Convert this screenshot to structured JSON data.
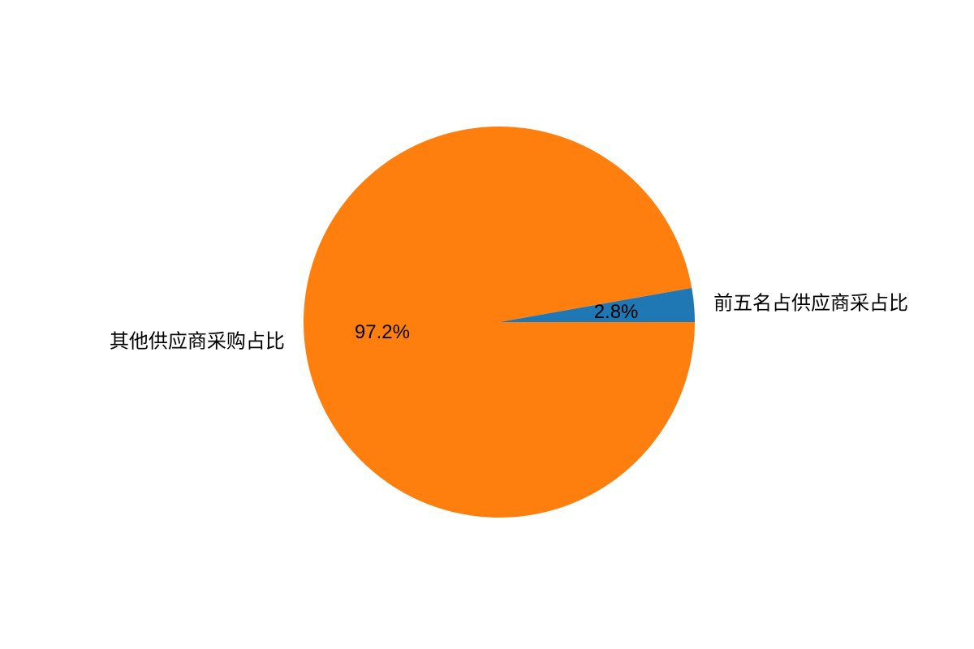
{
  "chart_data": {
    "type": "pie",
    "title": "",
    "start_angle_deg": 0,
    "direction": "counterclockwise",
    "slices": [
      {
        "label": "前五名占供应商采占比",
        "value": 2.8,
        "pct_label": "2.8%",
        "color": "#1f77b4"
      },
      {
        "label": "其他供应商采购占比",
        "value": 97.2,
        "pct_label": "97.2%",
        "color": "#ff7f0e"
      }
    ]
  }
}
